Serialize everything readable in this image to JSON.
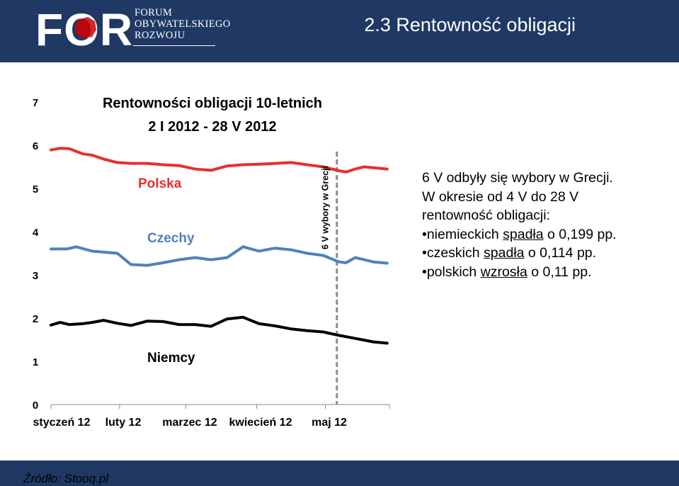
{
  "header": {
    "logo_big": "FOR",
    "logo_lines": [
      "FORUM",
      "OBYWATELSKIEGO",
      "ROZWOJU"
    ],
    "title": "2.3 Rentowność obligacji",
    "background": "#1f3864"
  },
  "chart_data": {
    "type": "line",
    "title_lines": [
      "Rentowności obligacji 10-letnich",
      "2 I 2012 - 28 V 2012"
    ],
    "xlabel": "",
    "ylabel": "",
    "ylim": [
      0,
      7
    ],
    "yticks": [
      0,
      1,
      2,
      3,
      4,
      5,
      6,
      7
    ],
    "xticks": [
      "styczeń 12",
      "luty 12",
      "marzec 12",
      "kwiecień 12",
      "maj 12"
    ],
    "grid": false,
    "annotation": {
      "text": "6 V wybory w Grecji",
      "x": "2012-05-06"
    },
    "series": [
      {
        "name": "Polska",
        "color": "#e6312c",
        "x": [
          "2012-01-02",
          "2012-01-06",
          "2012-01-10",
          "2012-01-16",
          "2012-01-20",
          "2012-01-25",
          "2012-01-31",
          "2012-02-06",
          "2012-02-13",
          "2012-02-20",
          "2012-02-27",
          "2012-03-05",
          "2012-03-12",
          "2012-03-19",
          "2012-03-26",
          "2012-04-02",
          "2012-04-09",
          "2012-04-16",
          "2012-04-23",
          "2012-04-30",
          "2012-05-07",
          "2012-05-10",
          "2012-05-14",
          "2012-05-18",
          "2012-05-22",
          "2012-05-28"
        ],
        "y": [
          5.89,
          5.93,
          5.92,
          5.8,
          5.77,
          5.68,
          5.6,
          5.58,
          5.58,
          5.55,
          5.53,
          5.45,
          5.42,
          5.52,
          5.55,
          5.56,
          5.58,
          5.6,
          5.55,
          5.5,
          5.41,
          5.38,
          5.45,
          5.5,
          5.48,
          5.45
        ]
      },
      {
        "name": "Czechy",
        "color": "#4f81bd",
        "x": [
          "2012-01-02",
          "2012-01-09",
          "2012-01-13",
          "2012-01-20",
          "2012-01-31",
          "2012-02-06",
          "2012-02-13",
          "2012-02-20",
          "2012-02-27",
          "2012-03-05",
          "2012-03-12",
          "2012-03-19",
          "2012-03-26",
          "2012-04-02",
          "2012-04-09",
          "2012-04-16",
          "2012-04-23",
          "2012-04-30",
          "2012-05-07",
          "2012-05-10",
          "2012-05-14",
          "2012-05-18",
          "2012-05-22",
          "2012-05-28"
        ],
        "y": [
          3.6,
          3.6,
          3.65,
          3.55,
          3.5,
          3.24,
          3.22,
          3.28,
          3.35,
          3.4,
          3.35,
          3.4,
          3.65,
          3.55,
          3.62,
          3.58,
          3.5,
          3.45,
          3.3,
          3.28,
          3.4,
          3.35,
          3.3,
          3.27
        ]
      },
      {
        "name": "Niemcy",
        "color": "#000000",
        "x": [
          "2012-01-02",
          "2012-01-06",
          "2012-01-10",
          "2012-01-16",
          "2012-01-20",
          "2012-01-25",
          "2012-01-31",
          "2012-02-06",
          "2012-02-13",
          "2012-02-20",
          "2012-02-27",
          "2012-03-05",
          "2012-03-12",
          "2012-03-19",
          "2012-03-26",
          "2012-04-02",
          "2012-04-09",
          "2012-04-16",
          "2012-04-23",
          "2012-04-30",
          "2012-05-07",
          "2012-05-10",
          "2012-05-14",
          "2012-05-18",
          "2012-05-22",
          "2012-05-28"
        ],
        "y": [
          1.84,
          1.9,
          1.85,
          1.87,
          1.9,
          1.95,
          1.88,
          1.83,
          1.93,
          1.92,
          1.85,
          1.85,
          1.81,
          1.98,
          2.02,
          1.87,
          1.82,
          1.75,
          1.71,
          1.68,
          1.6,
          1.57,
          1.53,
          1.49,
          1.45,
          1.42
        ]
      }
    ]
  },
  "info": {
    "intro": [
      "6 V odbyły się wybory w Grecji.",
      "W okresie od 4 V do 28 V",
      "rentowność obligacji:"
    ],
    "bullets": [
      {
        "pre": "•niemieckich ",
        "verb": "spadła",
        "post": " o 0,199 pp."
      },
      {
        "pre": "•czeskich ",
        "verb": "spadła",
        "post": " o 0,114 pp."
      },
      {
        "pre": "•polskich ",
        "verb": "wzrosła",
        "post": " o 0,11 pp."
      }
    ]
  },
  "footer": {
    "source": "Źródło: Stooq.pl"
  }
}
